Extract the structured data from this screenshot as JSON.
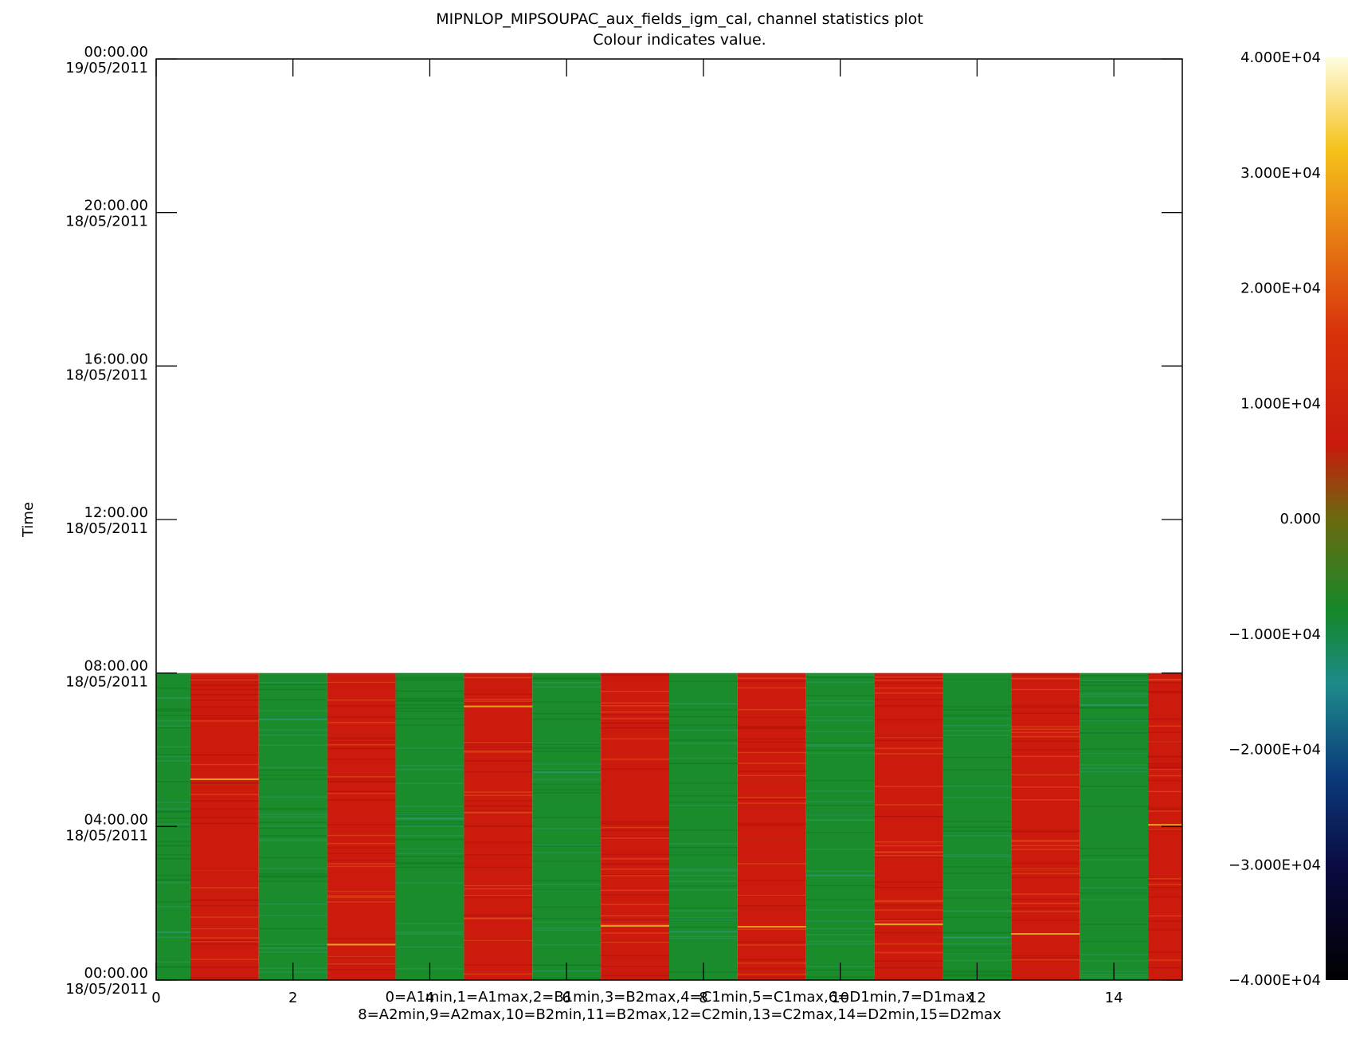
{
  "chart_data": {
    "type": "heatmap",
    "title": "MIPNLOP_MIPSOUPAC_aux_fields_igm_cal, channel statistics plot",
    "subtitle": "Colour indicates value.",
    "ylabel": "Time",
    "xlim": [
      0,
      15
    ],
    "x_ticks": [
      0,
      2,
      4,
      6,
      8,
      10,
      12,
      14
    ],
    "y_ticks": [
      {
        "time": "00:00.00",
        "date": "18/05/2011",
        "hour": 0
      },
      {
        "time": "04:00.00",
        "date": "18/05/2011",
        "hour": 4
      },
      {
        "time": "08:00.00",
        "date": "18/05/2011",
        "hour": 8
      },
      {
        "time": "12:00.00",
        "date": "18/05/2011",
        "hour": 12
      },
      {
        "time": "16:00.00",
        "date": "18/05/2011",
        "hour": 16
      },
      {
        "time": "20:00.00",
        "date": "18/05/2011",
        "hour": 20
      },
      {
        "time": "00:00.00",
        "date": "19/05/2011",
        "hour": 24
      }
    ],
    "ylim_hours": [
      0,
      24
    ],
    "data_time_range_hours": [
      0,
      8
    ],
    "channel_legend": [
      "0=A1min,1=A1max,2=B1min,3=B2max,4=C1min,5=C1max,6=D1min,7=D1max",
      "8=A2min,9=A2max,10=B2min,11=B2max,12=C2min,13=C2max,14=D2min,15=D2max"
    ],
    "channels": [
      {
        "channel": 0,
        "approx_value": -7000
      },
      {
        "channel": 1,
        "approx_value": 7000
      },
      {
        "channel": 2,
        "approx_value": -7000
      },
      {
        "channel": 3,
        "approx_value": 7000
      },
      {
        "channel": 4,
        "approx_value": -7000
      },
      {
        "channel": 5,
        "approx_value": 7000
      },
      {
        "channel": 6,
        "approx_value": -7000
      },
      {
        "channel": 7,
        "approx_value": 7000
      },
      {
        "channel": 8,
        "approx_value": -7000
      },
      {
        "channel": 9,
        "approx_value": 7000
      },
      {
        "channel": 10,
        "approx_value": -7000
      },
      {
        "channel": 11,
        "approx_value": 7000
      },
      {
        "channel": 12,
        "approx_value": -7000
      },
      {
        "channel": 13,
        "approx_value": 7000
      },
      {
        "channel": 14,
        "approx_value": -7000
      },
      {
        "channel": 15,
        "approx_value": 7000
      }
    ],
    "colorbar": {
      "range": [
        -40000,
        40000
      ],
      "tick_labels": [
        "4.000E+04",
        "3.000E+04",
        "2.000E+04",
        "1.000E+04",
        "0.000",
        "−1.000E+04",
        "−2.000E+04",
        "−3.000E+04",
        "−4.000E+04"
      ],
      "tick_values": [
        40000,
        30000,
        20000,
        10000,
        0,
        -10000,
        -20000,
        -30000,
        -40000
      ]
    },
    "colors": {
      "low_channel": "#1a8c2b",
      "high_channel": "#cc1a0d",
      "streak_yellow": "#f0c020",
      "streak_teal": "#2a9a7a",
      "background": "#ffffff"
    }
  }
}
